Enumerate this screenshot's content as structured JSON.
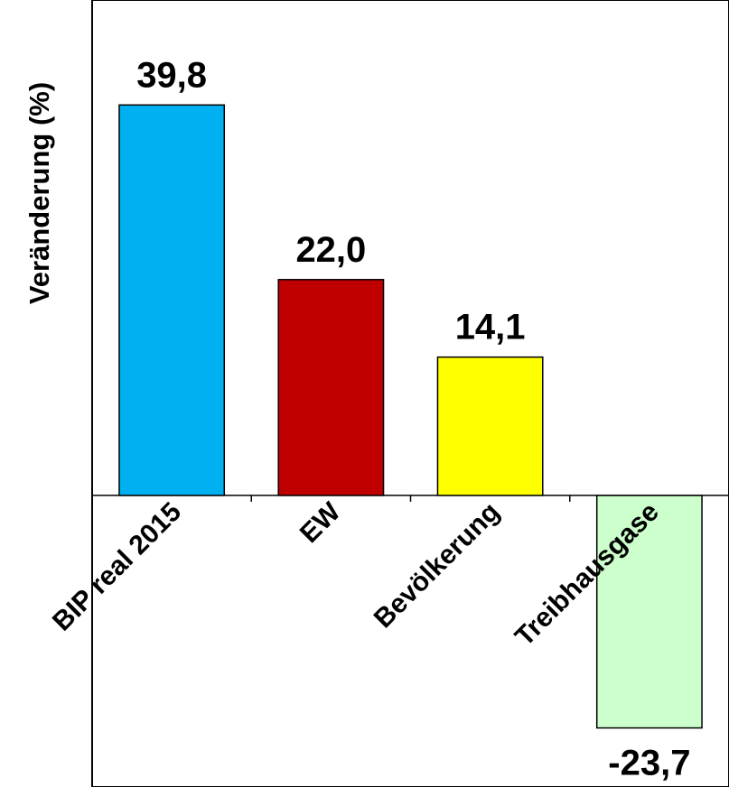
{
  "chart_data": {
    "type": "bar",
    "title": "",
    "xlabel": "",
    "ylabel": "Veränderung (%)",
    "categories": [
      "BIP real 2015",
      "EW",
      "Bevölkerung",
      "Treibhausgase"
    ],
    "values": [
      39.8,
      22.0,
      14.1,
      -23.7
    ],
    "value_labels": [
      "39,8",
      "22,0",
      "14,1",
      "-23,7"
    ],
    "colors": [
      "#00B0F0",
      "#C00000",
      "#FFFF00",
      "#CCFFCC"
    ],
    "bar_border_color": "#000000",
    "ylim": [
      -29.5,
      50.5
    ],
    "grid": false,
    "legend": "none"
  }
}
